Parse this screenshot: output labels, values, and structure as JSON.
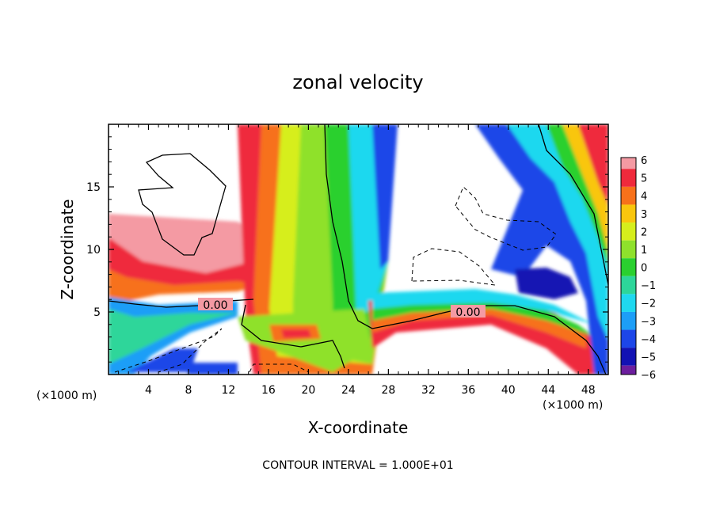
{
  "chart_data": {
    "type": "heatmap",
    "title": "zonal velocity",
    "xlabel": "X-coordinate",
    "ylabel": "Z-coordinate",
    "x_unit": "(×1000 m)",
    "z_unit": "(×1000 m)",
    "xlim": [
      0,
      50
    ],
    "ylim": [
      0,
      20
    ],
    "x_ticks": [
      4,
      8,
      12,
      16,
      20,
      24,
      28,
      32,
      36,
      40,
      44,
      48
    ],
    "y_ticks": [
      5,
      10,
      15
    ],
    "colorbar": {
      "levels": [
        6,
        5,
        4,
        3,
        2,
        1,
        0,
        -1,
        -2,
        -3,
        -4,
        -5,
        -6
      ],
      "colors": [
        "#f49aa3",
        "#ef2a3c",
        "#f7711a",
        "#f9c60d",
        "#d6ee1c",
        "#8fe12c",
        "#2ad02f",
        "#2dd69a",
        "#1fd8ef",
        "#1d9ef7",
        "#1d46e8",
        "#1212b3",
        "#6c1e9e"
      ]
    },
    "contour_labels": [
      "0.00",
      "0.00"
    ],
    "contour_interval": "CONTOUR INTERVAL = 1.000E+01"
  }
}
